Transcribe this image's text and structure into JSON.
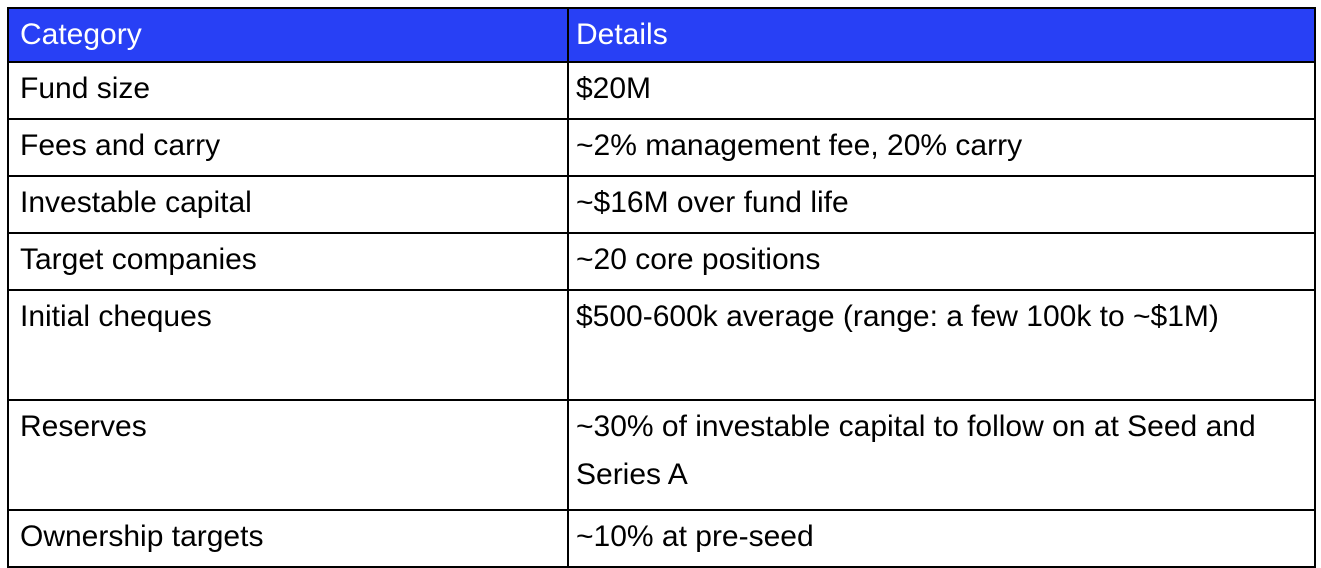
{
  "table": {
    "columns": [
      "Category",
      "Details"
    ],
    "rows": [
      {
        "category": "Fund size",
        "details": "$20M"
      },
      {
        "category": "Fees and carry",
        "details": "~2% management fee, 20% carry"
      },
      {
        "category": "Investable capital",
        "details": "~$16M over fund life"
      },
      {
        "category": "Target companies",
        "details": "~20 core positions"
      },
      {
        "category": "Initial cheques",
        "details": "$500-600k average (range: a few 100k to ~$1M)"
      },
      {
        "category": "Reserves",
        "details": "~30% of investable capital to follow on at Seed and Series A"
      },
      {
        "category": "Ownership targets",
        "details": "~10% at pre-seed"
      }
    ],
    "colors": {
      "header_bg": "#2840f5",
      "header_text": "#ffffff",
      "body_text": "#000000",
      "border": "#000000",
      "page_bg": "#ffffff"
    }
  }
}
